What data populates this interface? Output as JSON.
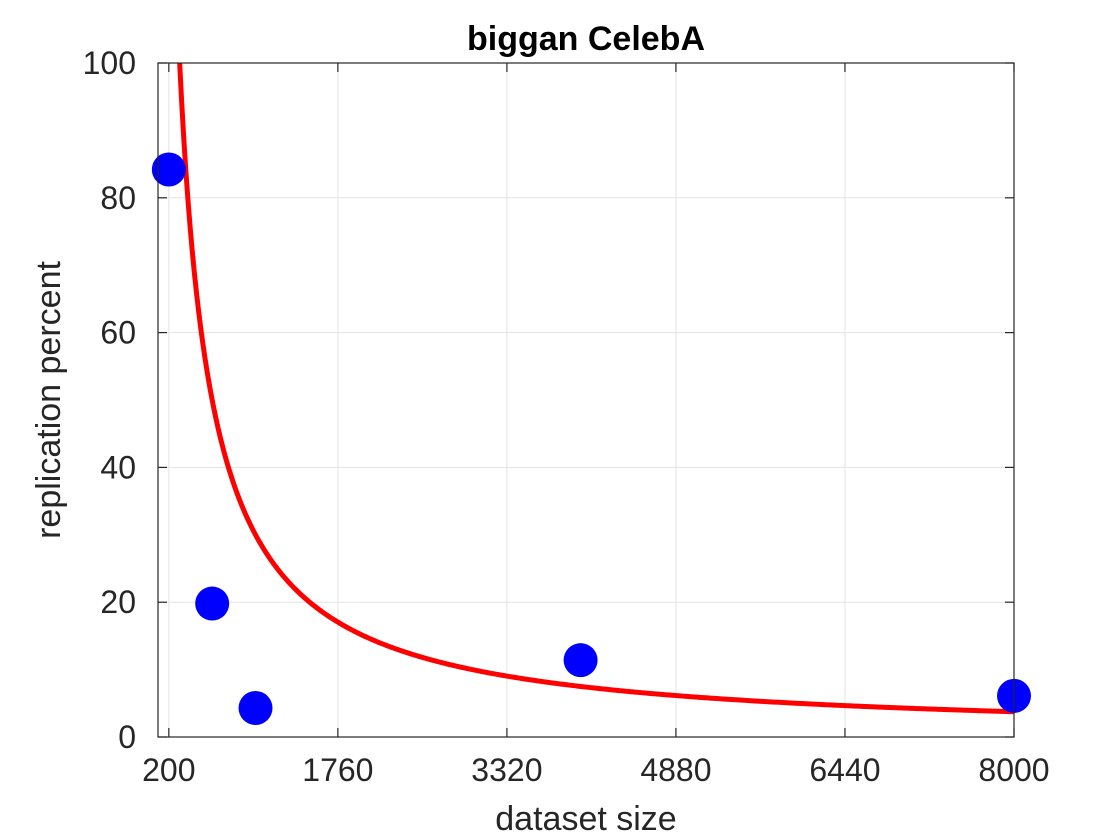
{
  "chart_data": {
    "type": "scatter",
    "title": "biggan CelebA",
    "xlabel": "dataset size",
    "ylabel": "replication percent",
    "xlim": [
      100,
      8000
    ],
    "ylim": [
      0,
      100
    ],
    "xticks": [
      200,
      1760,
      3320,
      4880,
      6440,
      8000
    ],
    "yticks": [
      0,
      20,
      40,
      60,
      80,
      100
    ],
    "grid": true,
    "series": [
      {
        "kind": "points",
        "color": "#0000ff",
        "points": [
          {
            "x": 200,
            "y": 84.2
          },
          {
            "x": 600,
            "y": 19.8
          },
          {
            "x": 1000,
            "y": 4.3
          },
          {
            "x": 4000,
            "y": 11.4
          },
          {
            "x": 8000,
            "y": 6.1
          }
        ]
      },
      {
        "kind": "fit-curve",
        "color": "#ff0000",
        "model": "y = a / x",
        "a": 30000,
        "x_range": [
          100,
          8000
        ]
      }
    ]
  }
}
